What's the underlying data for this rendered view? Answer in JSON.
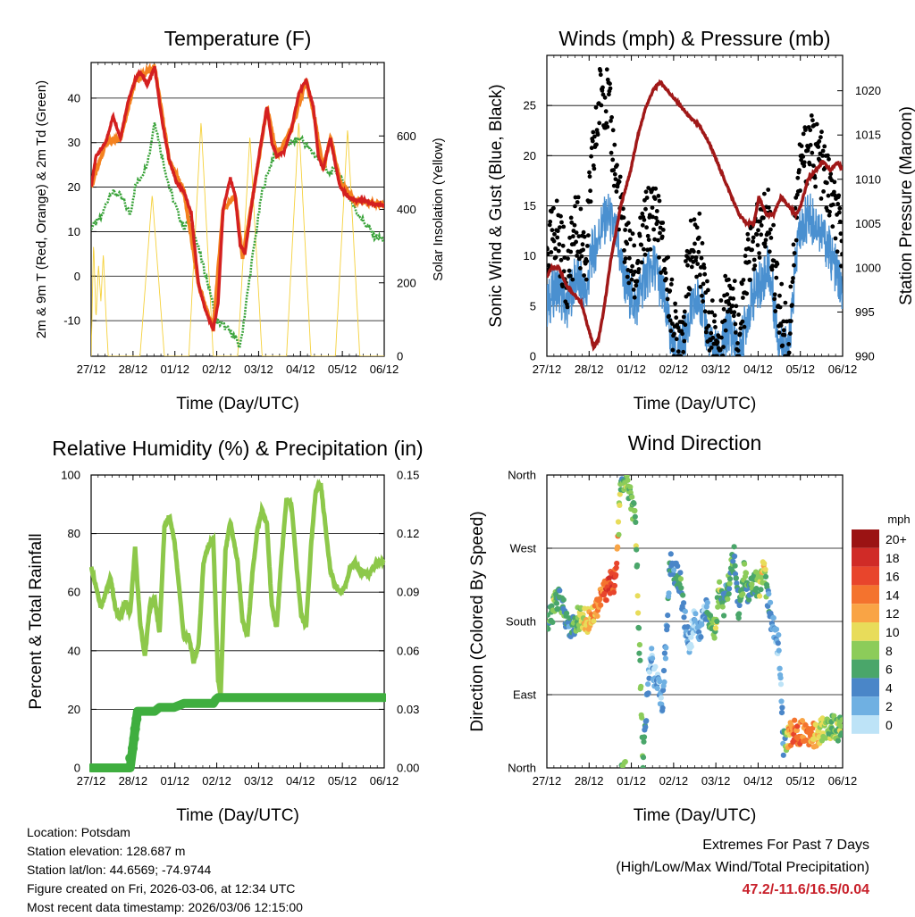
{
  "chart_data": [
    {
      "type": "line",
      "title": "Temperature (F)",
      "xlabel": "Time (Day/UTC)",
      "ylabel": "2m & 9m T (Red, Orange) & 2m Td (Green)",
      "ylabel_right": "Solar Insolation (Yellow)",
      "x_ticks": [
        "27/12",
        "28/12",
        "01/12",
        "02/12",
        "03/12",
        "04/12",
        "05/12",
        "06/12"
      ],
      "ylim": [
        -18,
        48
      ],
      "y_ticks": [
        -10,
        0,
        10,
        20,
        30,
        40
      ],
      "ylim_right": [
        0,
        800
      ],
      "y_ticks_right": [
        0,
        200,
        400,
        600
      ],
      "grid": true,
      "colors": {
        "temp_2m": "#d42020",
        "temp_9m": "#f4821f",
        "dewpoint": "#3aa33a",
        "solar": "#f5d13c"
      },
      "series": [
        {
          "name": "2m T",
          "x": [
            0,
            0.1,
            0.3,
            0.45,
            0.6,
            0.75,
            0.9,
            1.0,
            1.15,
            1.3,
            1.45,
            1.6,
            1.75,
            1.9,
            2.05,
            2.2,
            2.35,
            2.5,
            2.6,
            2.7,
            2.85,
            2.95,
            3.05,
            3.15,
            3.3,
            3.45,
            3.6,
            3.7,
            3.8,
            3.95,
            4.1,
            4.25,
            4.4,
            4.55,
            4.65,
            4.75,
            4.9,
            5.0,
            5.1,
            5.25,
            5.4,
            5.6,
            5.8,
            6.0
          ],
          "values": [
            20,
            27,
            30,
            36,
            31,
            39,
            44,
            46,
            43,
            47,
            35,
            26,
            21,
            19,
            14,
            -2,
            -8,
            -12,
            -6,
            15,
            22,
            18,
            7,
            5,
            17,
            28,
            38,
            30,
            27,
            28,
            33,
            41,
            44,
            38,
            27,
            24,
            31,
            25,
            20,
            18,
            17,
            17,
            16,
            16
          ]
        },
        {
          "name": "9m T",
          "x": [
            0,
            0.3,
            0.6,
            0.9,
            1.3,
            1.6,
            1.9,
            2.2,
            2.5,
            2.7,
            2.95,
            3.1,
            3.3,
            3.6,
            3.8,
            4.1,
            4.4,
            4.55,
            4.75,
            4.9,
            5.1,
            5.4,
            6.0
          ],
          "values": [
            20,
            30,
            31,
            44,
            47,
            26,
            19,
            -2,
            -12,
            15,
            18,
            4,
            17,
            38,
            27,
            33,
            44,
            37,
            24,
            31,
            21,
            17,
            16
          ]
        },
        {
          "name": "2m Td",
          "x": [
            0,
            0.2,
            0.4,
            0.6,
            0.8,
            0.9,
            1.0,
            1.1,
            1.2,
            1.3,
            1.45,
            1.6,
            1.75,
            1.9,
            2.05,
            2.15,
            2.3,
            2.45,
            2.55,
            2.7,
            2.9,
            3.05,
            3.15,
            3.3,
            3.5,
            3.7,
            3.9,
            4.1,
            4.3,
            4.5,
            4.7,
            4.85,
            5.0,
            5.2,
            5.4,
            5.6,
            5.8,
            6.0
          ],
          "values": [
            11,
            13,
            19,
            18,
            14,
            20,
            22,
            24,
            28,
            35,
            27,
            20,
            15,
            11,
            13,
            8,
            2,
            -4,
            -10,
            -11,
            -13,
            -16,
            -8,
            4,
            19,
            26,
            29,
            30,
            31,
            28,
            26,
            23,
            24,
            20,
            15,
            12,
            9,
            8
          ]
        },
        {
          "name": "Solar Insolation",
          "axis": "right",
          "x": [
            0,
            0.05,
            0.1,
            0.15,
            0.2,
            0.25,
            0.3,
            0.35,
            0.4,
            0.45,
            1.0,
            1.25,
            1.5,
            1.75,
            2.0,
            2.25,
            2.5,
            2.75,
            3.0,
            3.25,
            3.5,
            3.75,
            4.0,
            4.25,
            4.5,
            4.75,
            5.0,
            5.25,
            5.5,
            5.75,
            6.0
          ],
          "values": [
            0,
            310,
            100,
            250,
            150,
            280,
            120,
            0,
            0,
            0,
            0,
            440,
            0,
            0,
            0,
            640,
            0,
            0,
            0,
            600,
            0,
            0,
            0,
            640,
            0,
            0,
            0,
            620,
            0,
            0,
            0
          ]
        }
      ]
    },
    {
      "type": "scatter",
      "title": "Winds (mph) & Pressure (mb)",
      "xlabel": "Time (Day/UTC)",
      "ylabel": "Sonic Wind & Gust (Blue, Black)",
      "ylabel_right": "Station Pressure (Maroon)",
      "x_ticks": [
        "27/12",
        "28/12",
        "01/12",
        "02/12",
        "03/12",
        "04/12",
        "05/12",
        "06/12"
      ],
      "ylim": [
        0,
        30
      ],
      "y_ticks": [
        0,
        5,
        10,
        15,
        20,
        25
      ],
      "ylim_right": [
        990,
        1024
      ],
      "y_ticks_right": [
        990,
        995,
        1000,
        1005,
        1010,
        1015,
        1020
      ],
      "grid": true,
      "colors": {
        "wind": "#4a90d0",
        "gust": "#000000",
        "pressure": "#a01818"
      },
      "series": [
        {
          "name": "Sonic Wind",
          "x": [
            0,
            0.2,
            0.4,
            0.6,
            0.8,
            0.9,
            1.0,
            1.1,
            1.25,
            1.4,
            1.6,
            1.8,
            2.0,
            2.2,
            2.4,
            2.6,
            2.75,
            2.9,
            3.1,
            3.3,
            3.5,
            3.7,
            3.9,
            4.1,
            4.3,
            4.5,
            4.7,
            4.9,
            5.1,
            5.3,
            5.5,
            5.7,
            5.9,
            6.0
          ],
          "values": [
            5,
            7,
            5,
            8,
            6,
            10,
            11,
            13,
            14,
            12,
            7,
            5,
            8,
            9,
            5,
            0,
            1,
            4,
            6,
            1,
            0,
            3,
            0,
            5,
            7,
            9,
            2,
            0,
            12,
            14,
            13,
            11,
            8,
            6
          ]
        },
        {
          "name": "Gust",
          "x": [
            0,
            0.2,
            0.4,
            0.6,
            0.8,
            0.9,
            1.0,
            1.1,
            1.25,
            1.4,
            1.6,
            1.8,
            2.0,
            2.2,
            2.4,
            2.6,
            2.75,
            2.9,
            3.1,
            3.3,
            3.5,
            3.7,
            3.9,
            4.1,
            4.3,
            4.5,
            4.7,
            4.9,
            5.1,
            5.3,
            5.5,
            5.7,
            5.9,
            6.0
          ],
          "values": [
            10,
            13,
            8,
            13,
            10,
            18,
            22,
            27,
            25,
            18,
            11,
            8,
            13,
            15,
            9,
            2,
            3,
            10,
            11,
            3,
            1,
            8,
            2,
            10,
            12,
            14,
            5,
            1,
            18,
            21,
            20,
            17,
            13,
            11
          ]
        },
        {
          "name": "Station Pressure",
          "axis": "right",
          "x": [
            0,
            0.1,
            0.25,
            0.4,
            0.55,
            0.7,
            0.85,
            0.95,
            1.05,
            1.15,
            1.3,
            1.5,
            1.7,
            1.85,
            2.0,
            2.15,
            2.3,
            2.45,
            2.6,
            2.75,
            2.9,
            3.1,
            3.3,
            3.45,
            3.6,
            3.75,
            3.9,
            4.05,
            4.2,
            4.3,
            4.45,
            4.6,
            4.75,
            4.9,
            5.05,
            5.15,
            5.3,
            5.45,
            5.6,
            5.75,
            5.9,
            6.0
          ],
          "values": [
            999,
            1000,
            1000,
            998,
            997,
            996,
            993,
            991,
            992,
            995,
            1001,
            1007,
            1011,
            1015,
            1018,
            1020,
            1021,
            1020,
            1019,
            1018,
            1017,
            1016,
            1014,
            1012,
            1010,
            1008,
            1006,
            1005,
            1005,
            1008,
            1006,
            1006,
            1008,
            1007,
            1006,
            1007,
            1010,
            1011,
            1012,
            1011,
            1012,
            1011
          ]
        }
      ]
    },
    {
      "type": "line",
      "title": "Relative Humidity (%) & Precipitation (in)",
      "xlabel": "Time (Day/UTC)",
      "ylabel": "Percent & Total Rainfall",
      "x_ticks": [
        "27/12",
        "28/12",
        "01/12",
        "02/12",
        "03/12",
        "04/12",
        "05/12",
        "06/12"
      ],
      "ylim": [
        0,
        100
      ],
      "y_ticks": [
        0,
        20,
        40,
        60,
        80,
        100
      ],
      "ylim_right": [
        0,
        0.15
      ],
      "y_ticks_right": [
        "0.00",
        "0.03",
        "0.06",
        "0.09",
        "0.12",
        "0.15"
      ],
      "grid": true,
      "colors": {
        "rh": "#8dc84a",
        "precip": "#3fae3f"
      },
      "series": [
        {
          "name": "Relative Humidity",
          "x": [
            0,
            0.1,
            0.2,
            0.3,
            0.4,
            0.5,
            0.6,
            0.7,
            0.8,
            0.9,
            1.0,
            1.1,
            1.2,
            1.3,
            1.4,
            1.5,
            1.6,
            1.7,
            1.8,
            1.9,
            2.0,
            2.1,
            2.2,
            2.3,
            2.4,
            2.5,
            2.6,
            2.65,
            2.75,
            2.85,
            3.0,
            3.1,
            3.2,
            3.3,
            3.4,
            3.5,
            3.6,
            3.7,
            3.8,
            3.9,
            4.0,
            4.1,
            4.2,
            4.3,
            4.4,
            4.5,
            4.6,
            4.7,
            4.8,
            4.9,
            5.0,
            5.1,
            5.2,
            5.3,
            5.4,
            5.5,
            5.6,
            5.7,
            5.8,
            5.9,
            6.0
          ],
          "values": [
            69,
            62,
            55,
            60,
            65,
            54,
            51,
            57,
            53,
            75,
            50,
            38,
            55,
            58,
            46,
            82,
            86,
            78,
            62,
            44,
            45,
            36,
            42,
            70,
            76,
            78,
            30,
            24,
            74,
            84,
            70,
            50,
            45,
            66,
            81,
            88,
            83,
            55,
            48,
            72,
            92,
            90,
            70,
            52,
            48,
            75,
            95,
            97,
            82,
            67,
            62,
            60,
            62,
            68,
            70,
            67,
            67,
            66,
            69,
            70,
            70
          ]
        },
        {
          "name": "Total Precipitation",
          "axis": "right",
          "x": [
            0,
            0.8,
            0.85,
            0.9,
            0.95,
            1.0,
            1.3,
            1.4,
            1.7,
            1.9,
            2.2,
            2.5,
            2.55,
            2.6,
            3.0,
            4.0,
            5.0,
            6.0
          ],
          "values": [
            0,
            0,
            0.01,
            0.02,
            0.029,
            0.029,
            0.029,
            0.031,
            0.031,
            0.033,
            0.033,
            0.033,
            0.035,
            0.036,
            0.036,
            0.036,
            0.036,
            0.036
          ]
        }
      ]
    },
    {
      "type": "scatter",
      "title": "Wind Direction",
      "xlabel": "Time (Day/UTC)",
      "ylabel": "Direction (Colored By Speed)",
      "x_ticks": [
        "27/12",
        "28/12",
        "01/12",
        "02/12",
        "03/12",
        "04/12",
        "05/12",
        "06/12"
      ],
      "y_ticks": [
        "North",
        "East",
        "South",
        "West",
        "North"
      ],
      "ylim": [
        0,
        360
      ],
      "grid": true,
      "colorbar": {
        "unit": "mph",
        "labels": [
          "20+",
          "18",
          "16",
          "14",
          "12",
          "10",
          "8",
          "6",
          "4",
          "2",
          "0"
        ],
        "colors": [
          "#9b1313",
          "#d02b27",
          "#e8452c",
          "#f4732e",
          "#f9a445",
          "#e8dc5a",
          "#8ccc5a",
          "#4aa66a",
          "#4a86c8",
          "#6fb0e2",
          "#bde3f7"
        ]
      },
      "series": [
        {
          "name": "Direction",
          "x": [
            0.05,
            0.15,
            0.25,
            0.35,
            0.45,
            0.55,
            0.65,
            0.8,
            0.95,
            1.1,
            1.25,
            1.4,
            1.5,
            1.6,
            1.7,
            1.8,
            1.95,
            2.1,
            2.2,
            2.35,
            2.5,
            2.6,
            2.7,
            2.8,
            2.9,
            3.0,
            3.1,
            3.2,
            3.3,
            3.4,
            3.5,
            3.6,
            3.7,
            3.8,
            3.9,
            4.0,
            4.1,
            4.2,
            4.3,
            4.4,
            4.5,
            4.6,
            4.7,
            4.8,
            4.9,
            5.0,
            5.1,
            5.2,
            5.3,
            5.4,
            5.5,
            5.6,
            5.7,
            5.8,
            5.9,
            6.0
          ],
          "values": [
            180,
            200,
            210,
            190,
            170,
            175,
            185,
            180,
            190,
            210,
            225,
            232,
            350,
            355,
            330,
            300,
            10,
            140,
            110,
            80,
            250,
            240,
            230,
            180,
            150,
            190,
            160,
            200,
            180,
            170,
            220,
            200,
            230,
            260,
            190,
            240,
            210,
            230,
            220,
            250,
            200,
            170,
            150,
            30,
            40,
            45,
            42,
            48,
            44,
            40,
            38,
            50,
            47,
            52,
            45,
            50
          ],
          "speeds": [
            6,
            8,
            5,
            6,
            4,
            6,
            8,
            10,
            12,
            14,
            16,
            15,
            6,
            8,
            7,
            8,
            7,
            1,
            2,
            2,
            5,
            4,
            6,
            3,
            2,
            2,
            2,
            2,
            6,
            7,
            8,
            4,
            6,
            6,
            4,
            8,
            5,
            6,
            8,
            10,
            4,
            3,
            2,
            2,
            12,
            14,
            15,
            13,
            14,
            12,
            10,
            9,
            8,
            7,
            8,
            7
          ]
        }
      ]
    }
  ],
  "meta": {
    "location": "Location: Potsdam",
    "elevation": "Station elevation: 128.687 m",
    "latlon": "Station lat/lon: 44.6569; -74.9744",
    "created": "Figure created on Fri, 2026-03-06, at 12:34 UTC",
    "timestamp": "Most recent data timestamp: 2026/03/06 12:15:00"
  },
  "extremes": {
    "title": "Extremes For Past 7 Days",
    "subtitle": "(High/Low/Max Wind/Total Precipitation)",
    "values": "47.2/-11.6/16.5/0.04"
  }
}
